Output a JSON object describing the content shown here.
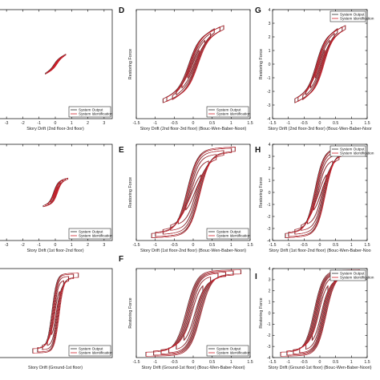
{
  "figure": {
    "colors": {
      "output": "#2a2a2a",
      "identification": "#d11f2a",
      "axes": "#000000"
    }
  },
  "legend": {
    "output": "System Output",
    "identification": "System Identification"
  },
  "chart_data": [
    {
      "id": "A",
      "panel_label": "",
      "type": "line",
      "xlabel": "Story Drift (2nd floor-3rd floor)",
      "ylabel": "",
      "xlim": [
        -3.5,
        3.5
      ],
      "ylim": [
        -4,
        4
      ],
      "xticks": [
        -3,
        -2,
        -1,
        0,
        1,
        2,
        3
      ],
      "yticks": [],
      "legend_position": "bottom-right",
      "series": [
        {
          "name": "System Output",
          "loops": [
            [
              0.1,
              0.3
            ],
            [
              0.25,
              0.45
            ],
            [
              0.4,
              0.55
            ],
            [
              0.5,
              0.6
            ],
            [
              0.62,
              0.7
            ]
          ],
          "tilt": 0.6,
          "offset": 0.2
        },
        {
          "name": "System Identification",
          "loops": [
            [
              0.1,
              0.3
            ],
            [
              0.25,
              0.45
            ],
            [
              0.4,
              0.55
            ],
            [
              0.5,
              0.6
            ],
            [
              0.62,
              0.7
            ]
          ],
          "tilt": 0.6,
          "offset": 0.2
        }
      ]
    },
    {
      "id": "D",
      "panel_label": "D",
      "type": "line",
      "xlabel": "Story Drift (2nd floor-3rd floor) (Bouc-Wen-Baber-Noori)",
      "ylabel": "Restoring Force",
      "xlim": [
        -1.5,
        1.5
      ],
      "ylim": [
        -4,
        4
      ],
      "xticks": [
        -1.5,
        -1,
        -0.5,
        0,
        0.5,
        1,
        1.5
      ],
      "yticks": [],
      "legend_position": "bottom-right",
      "series": [
        {
          "name": "System Output",
          "loops": [
            [
              0.15,
              1.3
            ],
            [
              0.3,
              1.8
            ],
            [
              0.45,
              2.2
            ],
            [
              0.55,
              2.5
            ],
            [
              0.7,
              2.6
            ],
            [
              0.8,
              2.7
            ]
          ],
          "tilt": 0.35,
          "offset": 0.9
        },
        {
          "name": "System Identification",
          "loops": [
            [
              0.15,
              1.3
            ],
            [
              0.3,
              1.8
            ],
            [
              0.45,
              2.2
            ],
            [
              0.55,
              2.5
            ],
            [
              0.7,
              2.6
            ],
            [
              0.8,
              2.7
            ]
          ],
          "tilt": 0.35,
          "offset": 0.9
        }
      ]
    },
    {
      "id": "G",
      "panel_label": "G",
      "type": "line",
      "xlabel": "Story Drift (2nd floor-3rd floor) (Bouc-Wen-Baber-Noor",
      "ylabel": "Restoring Force",
      "xlim": [
        -1.5,
        1.5
      ],
      "ylim": [
        -4,
        4
      ],
      "xticks": [
        -1.5,
        -1,
        -0.5,
        0,
        0.5,
        1,
        1.5
      ],
      "yticks": [
        -4,
        -3,
        -2,
        -1,
        0,
        1,
        2,
        3,
        4
      ],
      "legend_position": "top-right",
      "series": [
        {
          "name": "System Output",
          "loops": [
            [
              0.15,
              1.3
            ],
            [
              0.3,
              1.8
            ],
            [
              0.45,
              2.2
            ],
            [
              0.55,
              2.5
            ],
            [
              0.7,
              2.6
            ],
            [
              0.8,
              2.7
            ]
          ],
          "tilt": 0.35,
          "offset": 0.9
        },
        {
          "name": "System Identification",
          "loops": [
            [
              0.15,
              1.3
            ],
            [
              0.3,
              1.8
            ],
            [
              0.45,
              2.2
            ],
            [
              0.55,
              2.5
            ],
            [
              0.7,
              2.6
            ],
            [
              0.8,
              2.7
            ]
          ],
          "tilt": 0.35,
          "offset": 0.9
        }
      ]
    },
    {
      "id": "B",
      "panel_label": "",
      "type": "line",
      "xlabel": "Story Drift (1st floor-2nd floor)",
      "ylabel": "",
      "xlim": [
        -3.5,
        3.5
      ],
      "ylim": [
        -4,
        4
      ],
      "xticks": [
        -3,
        -2,
        -1,
        0,
        1,
        2,
        3
      ],
      "yticks": [],
      "legend_position": "bottom-right",
      "series": [
        {
          "name": "System Output",
          "loops": [
            [
              0.15,
              0.6
            ],
            [
              0.3,
              0.85
            ],
            [
              0.45,
              1.0
            ],
            [
              0.6,
              1.1
            ],
            [
              0.75,
              1.15
            ]
          ],
          "tilt": 0.25,
          "offset": 0.3
        },
        {
          "name": "System Identification",
          "loops": [
            [
              0.15,
              0.6
            ],
            [
              0.3,
              0.85
            ],
            [
              0.45,
              1.0
            ],
            [
              0.6,
              1.1
            ],
            [
              0.75,
              1.15
            ]
          ],
          "tilt": 0.25,
          "offset": 0.3
        }
      ]
    },
    {
      "id": "E",
      "panel_label": "E",
      "type": "line",
      "xlabel": "Story Drift (1st floor-2nd floor) (Bouc-Wen-Baber-Noori)",
      "ylabel": "Restoring Force",
      "xlim": [
        -1.5,
        1.5
      ],
      "ylim": [
        -4,
        4
      ],
      "xticks": [
        -1.5,
        -1,
        -0.5,
        0,
        0.5,
        1,
        1.5
      ],
      "yticks": [],
      "legend_position": "bottom-right",
      "series": [
        {
          "name": "System Output",
          "loops": [
            [
              0.2,
              1.8
            ],
            [
              0.4,
              2.6
            ],
            [
              0.6,
              3.0
            ],
            [
              0.8,
              3.3
            ],
            [
              1.0,
              3.5
            ],
            [
              1.1,
              3.6
            ]
          ],
          "tilt": 0.05,
          "offset": 1.2
        },
        {
          "name": "System Identification",
          "loops": [
            [
              0.2,
              1.8
            ],
            [
              0.4,
              2.6
            ],
            [
              0.6,
              3.0
            ],
            [
              0.8,
              3.3
            ],
            [
              1.0,
              3.5
            ],
            [
              1.1,
              3.6
            ]
          ],
          "tilt": 0.05,
          "offset": 1.2
        }
      ]
    },
    {
      "id": "H",
      "panel_label": "H",
      "type": "line",
      "xlabel": "Story Drift (1st floor-2nd floor) (Bouc-Wen-Baber-Noo",
      "ylabel": "Restoring Force",
      "xlim": [
        -1.5,
        1.5
      ],
      "ylim": [
        -4,
        4
      ],
      "xticks": [
        -1.5,
        -1,
        -0.5,
        0,
        0.5,
        1,
        1.5
      ],
      "yticks": [
        -4,
        -3,
        -2,
        -1,
        0,
        1,
        2,
        3,
        4
      ],
      "legend_position": "top-right",
      "series": [
        {
          "name": "System Output",
          "loops": [
            [
              0.2,
              1.8
            ],
            [
              0.4,
              2.6
            ],
            [
              0.6,
              3.0
            ],
            [
              0.8,
              3.3
            ],
            [
              1.0,
              3.5
            ],
            [
              1.1,
              3.6
            ]
          ],
          "tilt": 0.05,
          "offset": 1.2
        },
        {
          "name": "System Identification",
          "loops": [
            [
              0.2,
              1.8
            ],
            [
              0.4,
              2.6
            ],
            [
              0.6,
              3.0
            ],
            [
              0.8,
              3.3
            ],
            [
              1.0,
              3.5
            ],
            [
              1.1,
              3.6
            ]
          ],
          "tilt": 0.05,
          "offset": 1.2
        }
      ]
    },
    {
      "id": "C",
      "panel_label": "",
      "type": "line",
      "xlabel": "Story Drift (Ground-1st floor)",
      "ylabel": "",
      "xlim": [
        -3.5,
        3.5
      ],
      "ylim": [
        -4,
        4
      ],
      "xticks": [],
      "yticks": [],
      "legend_position": "bottom-right",
      "series": [
        {
          "name": "System Output",
          "loops": [
            [
              0.25,
              2.2
            ],
            [
              0.5,
              2.8
            ],
            [
              0.8,
              3.1
            ],
            [
              1.1,
              3.3
            ],
            [
              1.4,
              3.4
            ]
          ],
          "tilt": 0.02,
          "offset": 1.3
        },
        {
          "name": "System Identification",
          "loops": [
            [
              0.25,
              2.2
            ],
            [
              0.5,
              2.8
            ],
            [
              0.8,
              3.1
            ],
            [
              1.1,
              3.3
            ],
            [
              1.4,
              3.4
            ]
          ],
          "tilt": 0.02,
          "offset": 1.3
        }
      ]
    },
    {
      "id": "F",
      "panel_label": "F",
      "type": "line",
      "xlabel": "Story Drift (Ground-1st floor) (Bouc-Wen-Baber-Noori)",
      "ylabel": "Restoring Force",
      "xlim": [
        -1.5,
        1.5
      ],
      "ylim": [
        -4,
        4
      ],
      "xticks": [
        -1.5,
        -1,
        -0.5,
        0,
        0.5,
        1,
        1.5
      ],
      "yticks": [],
      "legend_position": "bottom-right",
      "series": [
        {
          "name": "System Output",
          "loops": [
            [
              0.25,
              2.8
            ],
            [
              0.45,
              3.2
            ],
            [
              0.65,
              3.4
            ],
            [
              0.85,
              3.5
            ],
            [
              1.05,
              3.6
            ],
            [
              1.25,
              3.7
            ]
          ],
          "tilt": 0.02,
          "offset": 1.2
        },
        {
          "name": "System Identification",
          "loops": [
            [
              0.25,
              2.8
            ],
            [
              0.45,
              3.2
            ],
            [
              0.65,
              3.4
            ],
            [
              0.85,
              3.5
            ],
            [
              1.05,
              3.6
            ],
            [
              1.25,
              3.7
            ]
          ],
          "tilt": 0.02,
          "offset": 1.2
        }
      ]
    },
    {
      "id": "I",
      "panel_label": "I",
      "type": "line",
      "xlabel": "Story Drift (Ground-1st floor) (Bouc-Wen-Baber-Noori)",
      "ylabel": "Restoring Force",
      "xlim": [
        -1.5,
        1.5
      ],
      "ylim": [
        -4,
        4
      ],
      "xticks": [
        -1.5,
        -1,
        -0.5,
        0,
        0.5,
        1,
        1.5
      ],
      "yticks": [
        -4,
        -3,
        -2,
        -1,
        0,
        1,
        2,
        3,
        4
      ],
      "legend_position": "top-right",
      "series": [
        {
          "name": "System Output",
          "loops": [
            [
              0.25,
              2.8
            ],
            [
              0.45,
              3.2
            ],
            [
              0.65,
              3.4
            ],
            [
              0.85,
              3.5
            ],
            [
              1.05,
              3.6
            ],
            [
              1.25,
              3.7
            ]
          ],
          "tilt": 0.02,
          "offset": 1.2
        },
        {
          "name": "System Identification",
          "loops": [
            [
              0.25,
              2.8
            ],
            [
              0.45,
              3.2
            ],
            [
              0.65,
              3.4
            ],
            [
              0.85,
              3.5
            ],
            [
              1.05,
              3.6
            ],
            [
              1.25,
              3.7
            ]
          ],
          "tilt": 0.02,
          "offset": 1.2
        }
      ]
    }
  ]
}
